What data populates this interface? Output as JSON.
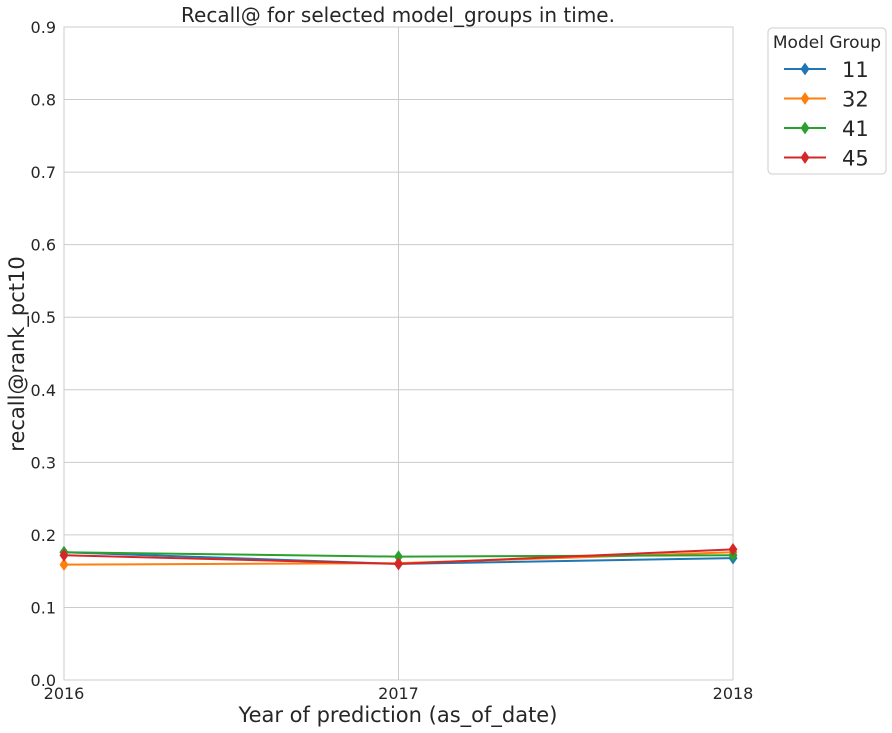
{
  "chart_data": {
    "type": "line",
    "title": "Recall@ for selected model_groups in time.",
    "xlabel": "Year of prediction (as_of_date)",
    "ylabel": "recall@rank_pct10",
    "x": [
      2016,
      2017,
      2018
    ],
    "x_tick_labels": [
      "2016",
      "2017",
      "2018"
    ],
    "xlim": [
      2016,
      2018
    ],
    "ylim": [
      0,
      0.9
    ],
    "y_ticks": [
      0.0,
      0.1,
      0.2,
      0.3,
      0.4,
      0.5,
      0.6,
      0.7,
      0.8,
      0.9
    ],
    "y_tick_labels": [
      "0.0",
      "0.1",
      "0.2",
      "0.3",
      "0.4",
      "0.5",
      "0.6",
      "0.7",
      "0.8",
      "0.9"
    ],
    "grid": true,
    "legend": {
      "title": "Model Group",
      "placement": "outside-top-right"
    },
    "series": [
      {
        "name": "11",
        "color": "#1f77b4",
        "marker": "diamond",
        "values": [
          0.176,
          0.16,
          0.168
        ]
      },
      {
        "name": "32",
        "color": "#ff7f0e",
        "marker": "diamond",
        "values": [
          0.159,
          0.161,
          0.176
        ]
      },
      {
        "name": "41",
        "color": "#2ca02c",
        "marker": "diamond",
        "values": [
          0.176,
          0.17,
          0.172
        ]
      },
      {
        "name": "45",
        "color": "#d62728",
        "marker": "diamond",
        "values": [
          0.172,
          0.16,
          0.18
        ]
      }
    ]
  }
}
